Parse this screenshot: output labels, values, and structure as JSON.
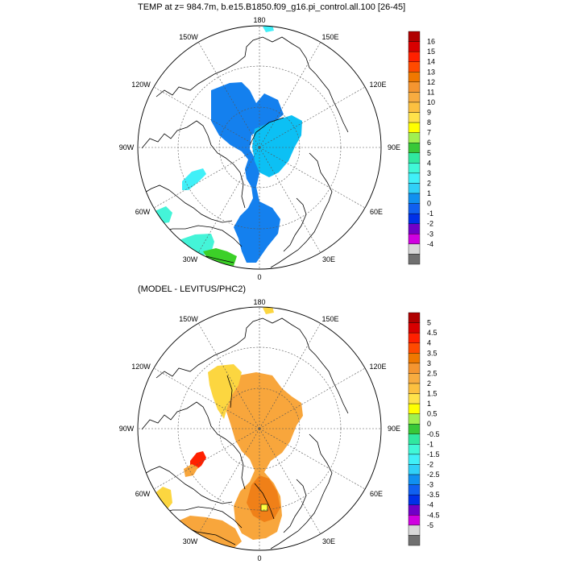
{
  "top_panel": {
    "title": "TEMP at z= 984.7m, b.e15.B1850.f09_g16.pi_control.all.100 [26-45]",
    "lon_labels": {
      "n": "180",
      "nw": "150W",
      "ne": "150E",
      "wnw": "120W",
      "ene": "120E",
      "w": "90W",
      "e": "90E",
      "wsw": "60W",
      "ese": "60E",
      "sw": "30W",
      "se": "30E",
      "s": "0"
    },
    "colorbar": {
      "labels": [
        "16",
        "15",
        "14",
        "13",
        "12",
        "11",
        "10",
        "9",
        "8",
        "7",
        "6",
        "5",
        "4",
        "3",
        "2",
        "1",
        "0",
        "-1",
        "-2",
        "-3",
        "-4"
      ],
      "colors": [
        "#b00000",
        "#d80000",
        "#ff2000",
        "#ff4a00",
        "#f07800",
        "#f59530",
        "#f8ac40",
        "#fcc040",
        "#ffe24a",
        "#ffff00",
        "#a0f050",
        "#38c838",
        "#30e8a0",
        "#40f8d8",
        "#40f0f8",
        "#30d0f8",
        "#1090f0",
        "#1060f0",
        "#0030e8",
        "#7000c8",
        "#d000e0",
        "#d8d8d8",
        "#707070"
      ]
    }
  },
  "bottom_panel": {
    "title": "(MODEL - LEVITUS/PHC2)",
    "lon_labels": {
      "n": "180",
      "nw": "150W",
      "ne": "150E",
      "wnw": "120W",
      "ene": "120E",
      "w": "90W",
      "e": "90E",
      "wsw": "60W",
      "ese": "60E",
      "sw": "30W",
      "se": "30E",
      "s": "0"
    },
    "colorbar": {
      "labels": [
        "5",
        "4.5",
        "4",
        "3.5",
        "3",
        "2.5",
        "2",
        "1.5",
        "1",
        "0.5",
        "0",
        "-0.5",
        "-1",
        "-1.5",
        "-2",
        "-2.5",
        "-3",
        "-3.5",
        "-4",
        "-4.5",
        "-5"
      ],
      "colors": [
        "#b00000",
        "#d80000",
        "#ff2000",
        "#ff4a00",
        "#f07800",
        "#f59530",
        "#f8ac40",
        "#fcc040",
        "#ffe24a",
        "#ffff00",
        "#a0f050",
        "#38c838",
        "#30e8a0",
        "#40f8d8",
        "#40f0f8",
        "#30d0f8",
        "#1090f0",
        "#1060f0",
        "#0030e8",
        "#7000c8",
        "#d000e0",
        "#d8d8d8",
        "#707070"
      ]
    }
  },
  "colors": {
    "top_blue": "#1480ee",
    "top_lightblue": "#0cc0f4",
    "top_cyan": "#44f4d8",
    "top_lightcyan": "#40f0f8",
    "top_green": "#3cd028",
    "bottom_orange": "#f8a63c",
    "bottom_darkorange": "#f08018",
    "bottom_yellow": "#fcd640",
    "bottom_red": "#ff2000"
  }
}
